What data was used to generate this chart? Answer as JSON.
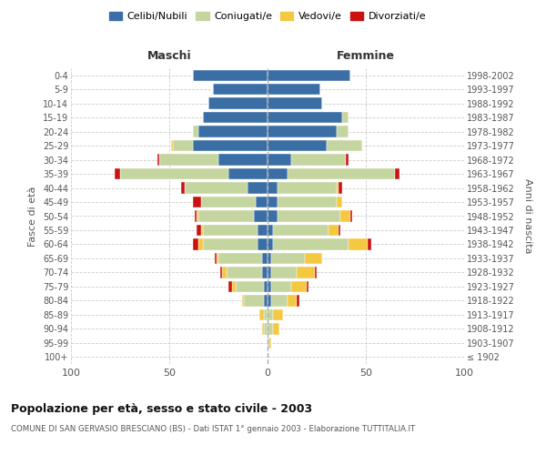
{
  "age_groups": [
    "100+",
    "95-99",
    "90-94",
    "85-89",
    "80-84",
    "75-79",
    "70-74",
    "65-69",
    "60-64",
    "55-59",
    "50-54",
    "45-49",
    "40-44",
    "35-39",
    "30-34",
    "25-29",
    "20-24",
    "15-19",
    "10-14",
    "5-9",
    "0-4"
  ],
  "birth_years": [
    "≤ 1902",
    "1903-1907",
    "1908-1912",
    "1913-1917",
    "1918-1922",
    "1923-1927",
    "1928-1932",
    "1933-1937",
    "1938-1942",
    "1943-1947",
    "1948-1952",
    "1953-1957",
    "1958-1962",
    "1963-1967",
    "1968-1972",
    "1973-1977",
    "1978-1982",
    "1983-1987",
    "1988-1992",
    "1993-1997",
    "1998-2002"
  ],
  "males": {
    "celibi": [
      0,
      0,
      0,
      0,
      2,
      2,
      3,
      3,
      5,
      5,
      7,
      6,
      10,
      20,
      25,
      38,
      35,
      33,
      30,
      28,
      38
    ],
    "coniugati": [
      0,
      0,
      2,
      2,
      10,
      14,
      18,
      22,
      28,
      28,
      28,
      28,
      32,
      55,
      30,
      10,
      3,
      0,
      0,
      0,
      0
    ],
    "vedovi": [
      0,
      0,
      1,
      2,
      1,
      2,
      2,
      1,
      2,
      1,
      1,
      0,
      0,
      0,
      0,
      1,
      0,
      0,
      0,
      0,
      0
    ],
    "divorziati": [
      0,
      0,
      0,
      0,
      0,
      2,
      1,
      1,
      3,
      2,
      1,
      4,
      2,
      3,
      1,
      0,
      0,
      0,
      0,
      0,
      0
    ]
  },
  "females": {
    "nubili": [
      0,
      0,
      0,
      0,
      2,
      2,
      2,
      2,
      3,
      3,
      5,
      5,
      5,
      10,
      12,
      30,
      35,
      38,
      28,
      27,
      42
    ],
    "coniugate": [
      0,
      1,
      3,
      3,
      8,
      10,
      13,
      17,
      38,
      28,
      32,
      30,
      30,
      55,
      28,
      18,
      6,
      3,
      0,
      0,
      0
    ],
    "vedove": [
      0,
      1,
      3,
      5,
      5,
      8,
      9,
      9,
      10,
      5,
      5,
      3,
      1,
      0,
      0,
      0,
      0,
      0,
      0,
      0,
      0
    ],
    "divorziate": [
      0,
      0,
      0,
      0,
      1,
      1,
      1,
      0,
      2,
      1,
      1,
      0,
      2,
      2,
      1,
      0,
      0,
      0,
      0,
      0,
      0
    ]
  },
  "color_celibi": "#3a6ea5",
  "color_coniugati": "#c5d5a0",
  "color_vedovi": "#f5c842",
  "color_divorziati": "#cc1111",
  "xlim": 100,
  "title": "Popolazione per età, sesso e stato civile - 2003",
  "subtitle": "COMUNE DI SAN GERVASIO BRESCIANO (BS) - Dati ISTAT 1° gennaio 2003 - Elaborazione TUTTITALIA.IT",
  "ylabel_left": "Fasce di età",
  "ylabel_right": "Anni di nascita",
  "xlabel_left": "Maschi",
  "xlabel_right": "Femmine",
  "bg_color": "#ffffff",
  "grid_color": "#cccccc",
  "text_color": "#555555",
  "title_color": "#111111"
}
